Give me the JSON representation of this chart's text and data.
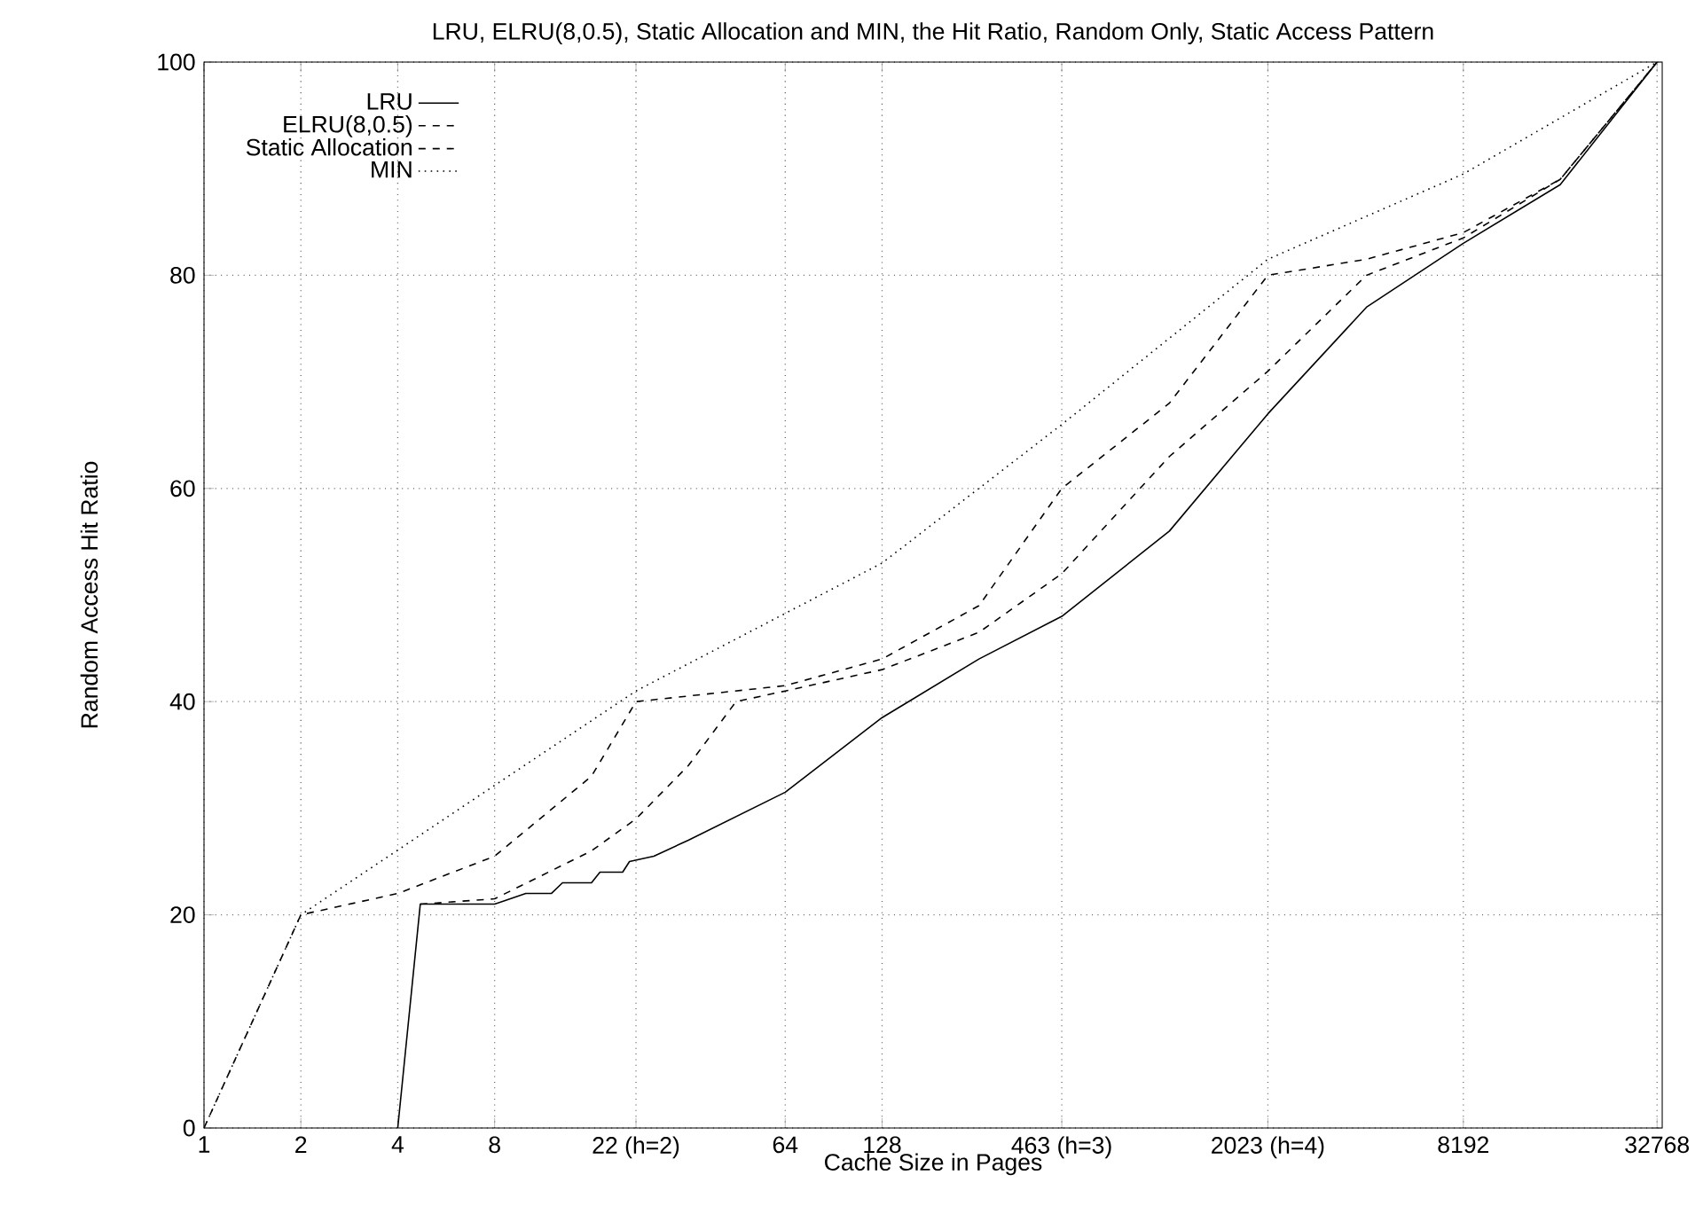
{
  "chart_data": {
    "type": "line",
    "title": "LRU, ELRU(8,0.5), Static Allocation and MIN, the Hit Ratio, Random Only, Static Access Pattern",
    "xlabel": "Cache Size in Pages",
    "ylabel": "Random Access Hit Ratio",
    "log": "x",
    "grid": true,
    "legend": "top left",
    "marker": "none",
    "xlim": [
      1,
      34000
    ],
    "ylim": [
      0,
      100
    ],
    "xticks": [
      1,
      2,
      4,
      8,
      {
        "value": 22,
        "label": "22 (h=2)"
      },
      64,
      128,
      {
        "value": 463,
        "label": "463 (h=3)"
      },
      {
        "value": 2023,
        "label": "2023 (h=4)"
      },
      8192,
      32768
    ],
    "yticks": [
      0,
      20,
      40,
      60,
      80,
      100
    ],
    "series": [
      {
        "name": "LRU",
        "color": "#000000",
        "line_style": "solid",
        "x": [
          4,
          4.7,
          8,
          10,
          12,
          13,
          16,
          17,
          20,
          21,
          25,
          32,
          64,
          128,
          256,
          463,
          1000,
          2023,
          4096,
          8192,
          16384,
          32768
        ],
        "values": [
          0,
          21,
          21,
          22,
          22,
          23,
          23,
          24,
          24,
          25,
          25.5,
          27,
          31.5,
          38.5,
          44,
          48,
          56,
          67,
          77,
          83,
          88.5,
          100
        ]
      },
      {
        "name": "ELRU(8,0.5)",
        "color": "#000000",
        "line_style": "dashed",
        "x": [
          4.7,
          8,
          16,
          22,
          32,
          45,
          64,
          128,
          256,
          463,
          1000,
          2023,
          4096,
          8192,
          16384,
          32768
        ],
        "values": [
          21,
          21.5,
          26,
          29,
          34,
          40,
          41,
          43,
          46.5,
          52,
          63,
          71,
          80,
          83.5,
          89,
          100
        ]
      },
      {
        "name": "Static Allocation",
        "color": "#000000",
        "line_style": "dashed",
        "x": [
          1,
          2,
          4,
          8,
          16,
          22,
          64,
          128,
          256,
          463,
          1000,
          2023,
          4096,
          8192,
          16384,
          32768
        ],
        "values": [
          0,
          20,
          22,
          25.5,
          33,
          40,
          41.5,
          44,
          49,
          60,
          68,
          80,
          81.5,
          84,
          89,
          100
        ]
      },
      {
        "name": "MIN",
        "color": "#000000",
        "line_style": "dotted",
        "x": [
          1,
          2,
          22,
          128,
          463,
          2023,
          8192,
          32768
        ],
        "values": [
          0,
          20,
          41,
          53,
          66,
          81.5,
          89.5,
          100
        ]
      }
    ]
  }
}
